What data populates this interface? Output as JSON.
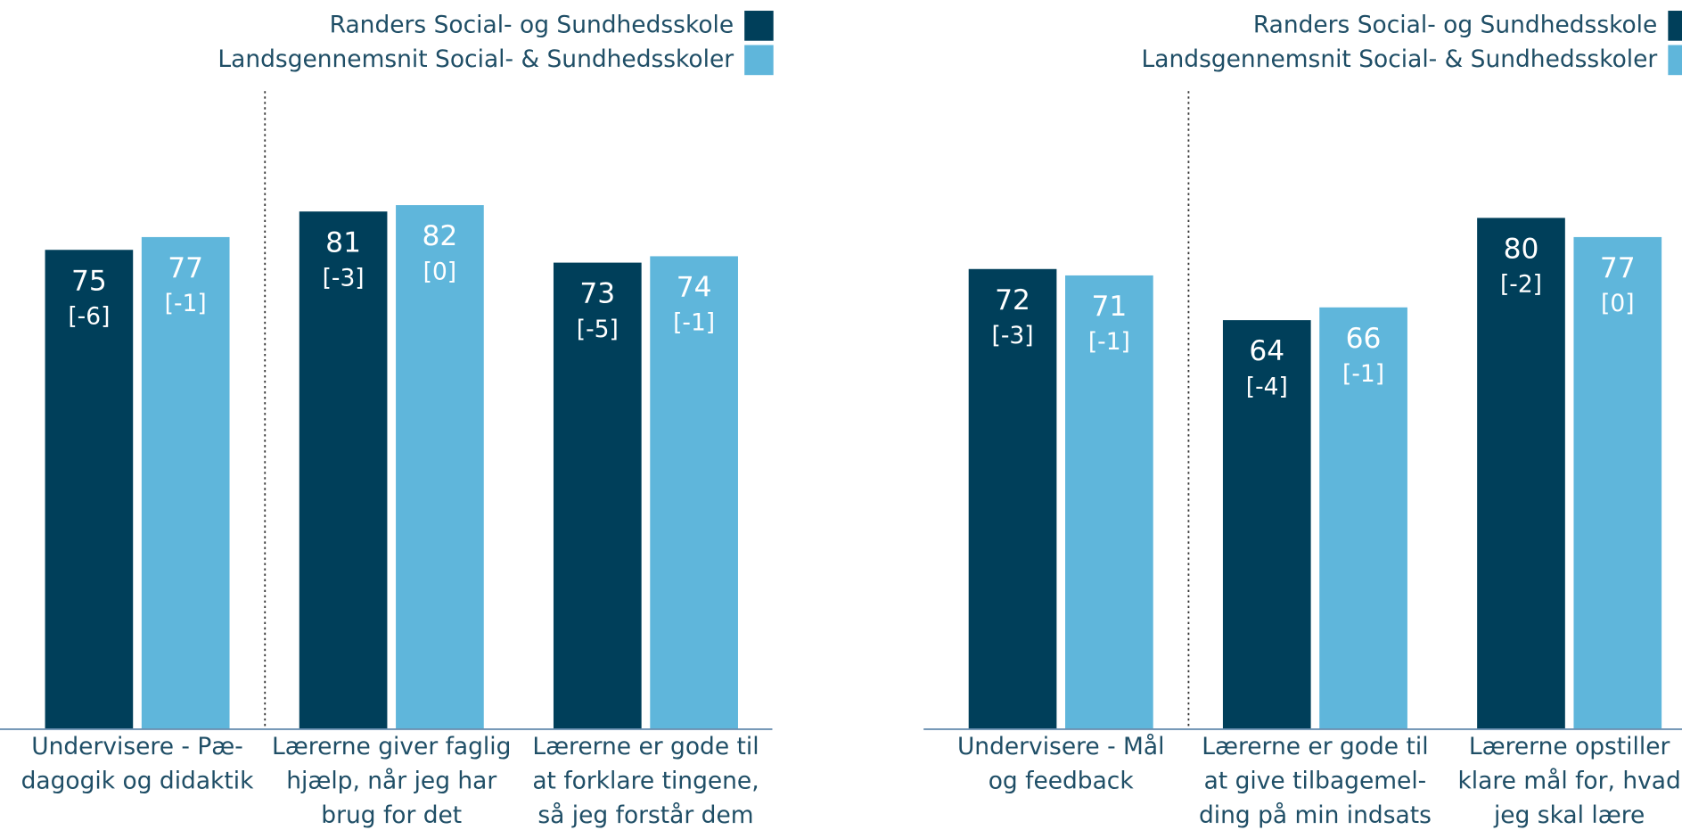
{
  "chart_data": [
    {
      "type": "bar",
      "categories": [
        [
          "Undervisere - Pæ-",
          "dagogik og didaktik"
        ],
        [
          "Lærerne giver faglig",
          "hjælp, når jeg har",
          "brug for det"
        ],
        [
          "Lærerne er gode til",
          "at forklare tingene,",
          "så jeg forstår dem"
        ]
      ],
      "series": [
        {
          "name": "Randers Social- og Sundhedsskole",
          "color": "#003f5a",
          "values": [
            75,
            81,
            73
          ],
          "changes": [
            "[-6]",
            "[-3]",
            "[-5]"
          ]
        },
        {
          "name": "Landsgennemsnit Social- & Sundhedsskoler",
          "color": "#5fb6db",
          "values": [
            77,
            82,
            74
          ],
          "changes": [
            "[-1]",
            "[0]",
            "[-1]"
          ]
        }
      ],
      "ylim": [
        0,
        100
      ]
    },
    {
      "type": "bar",
      "categories": [
        [
          "Undervisere - Mål",
          "og feedback"
        ],
        [
          "Lærerne er gode til",
          "at give tilbagemel-",
          "ding på min indsats"
        ],
        [
          "Lærerne opstiller",
          "klare mål for, hvad",
          "jeg skal lære"
        ]
      ],
      "series": [
        {
          "name": "Randers Social- og Sundhedsskole",
          "color": "#003f5a",
          "values": [
            72,
            64,
            80
          ],
          "changes": [
            "[-3]",
            "[-4]",
            "[-2]"
          ]
        },
        {
          "name": "Landsgennemsnit Social- & Sundhedsskoler",
          "color": "#5fb6db",
          "values": [
            71,
            66,
            77
          ],
          "changes": [
            "[-1]",
            "[-1]",
            "[0]"
          ]
        }
      ],
      "ylim": [
        0,
        100
      ]
    }
  ]
}
